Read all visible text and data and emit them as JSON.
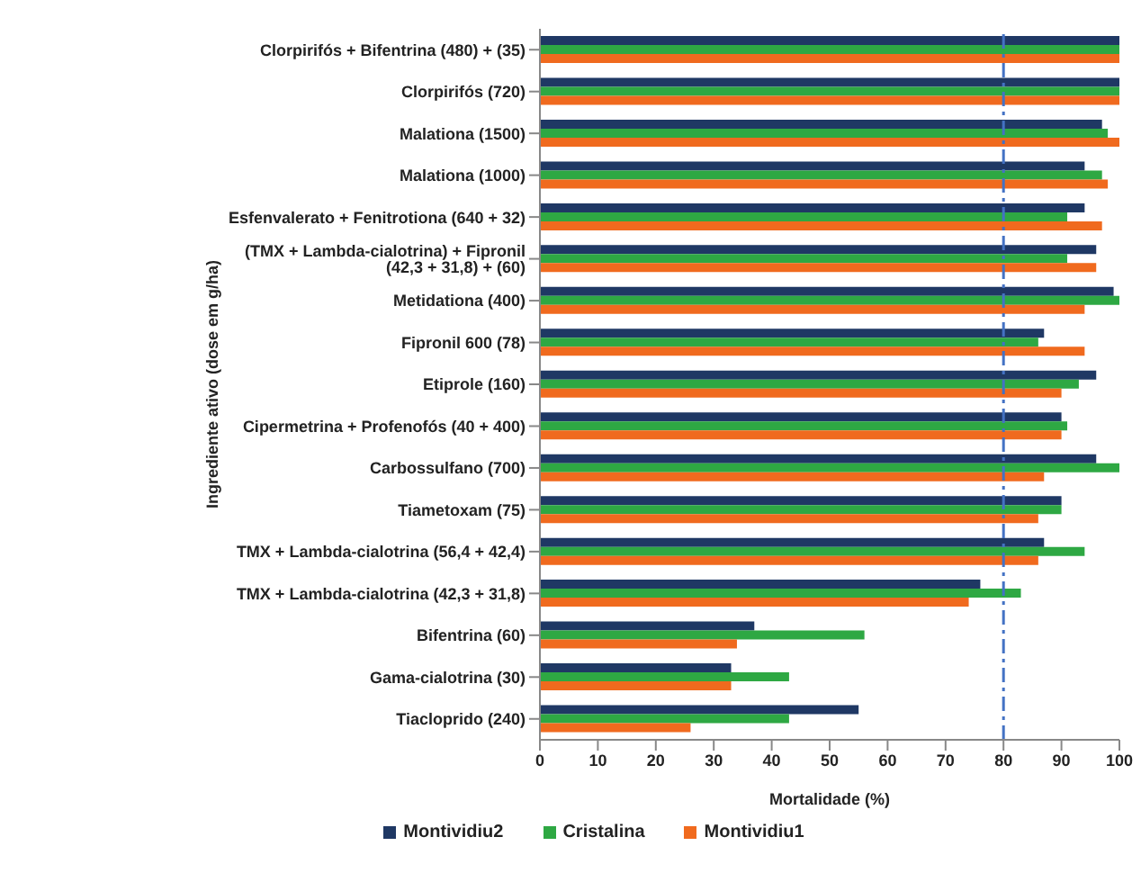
{
  "chart_data": {
    "type": "bar",
    "orientation": "horizontal",
    "xlabel": "Mortalidade (%)",
    "ylabel": "Ingrediente ativo (dose em g/ha)",
    "categories": [
      "Clorpirifós + Bifentrina (480) + (35)",
      "Clorpirifós (720)",
      "Malationa (1500)",
      "Malationa (1000)",
      "Esfenvalerato + Fenitrotiona (640 + 32)",
      "(TMX + Lambda-cialotrina) + Fipronil (42,3 + 31,8) + (60)",
      "Metidationa (400)",
      "Fipronil 600 (78)",
      "Etiprole (160)",
      "Cipermetrina + Profenofós (40 + 400)",
      "Carbossulfano (700)",
      "Tiametoxam (75)",
      "TMX + Lambda-cialotrina (56,4 + 42,4)",
      "TMX + Lambda-cialotrina (42,3 + 31,8)",
      "Bifentrina (60)",
      "Gama-cialotrina (30)",
      "Tiacloprido (240)"
    ],
    "series": [
      {
        "name": "Montividiu2",
        "color": "#1f3864",
        "values": [
          100,
          100,
          97,
          94,
          94,
          96,
          99,
          87,
          96,
          90,
          96,
          90,
          87,
          76,
          37,
          33,
          55
        ]
      },
      {
        "name": "Cristalina",
        "color": "#2ea843",
        "values": [
          100,
          100,
          98,
          97,
          91,
          91,
          100,
          86,
          93,
          91,
          100,
          90,
          94,
          83,
          56,
          43,
          43
        ]
      },
      {
        "name": "Montividiu1",
        "color": "#f06a1e",
        "values": [
          100,
          100,
          100,
          98,
          97,
          96,
          94,
          94,
          90,
          90,
          87,
          86,
          86,
          74,
          34,
          33,
          26
        ]
      }
    ],
    "xlim": [
      0,
      100
    ],
    "xticks": [
      0,
      10,
      20,
      30,
      40,
      50,
      60,
      70,
      80,
      90,
      100
    ],
    "ref_lines": [
      {
        "axis": "x",
        "value": 80,
        "color": "#4472c4",
        "line_style": "dashdot"
      }
    ],
    "grid": false,
    "legend": "bottom"
  }
}
